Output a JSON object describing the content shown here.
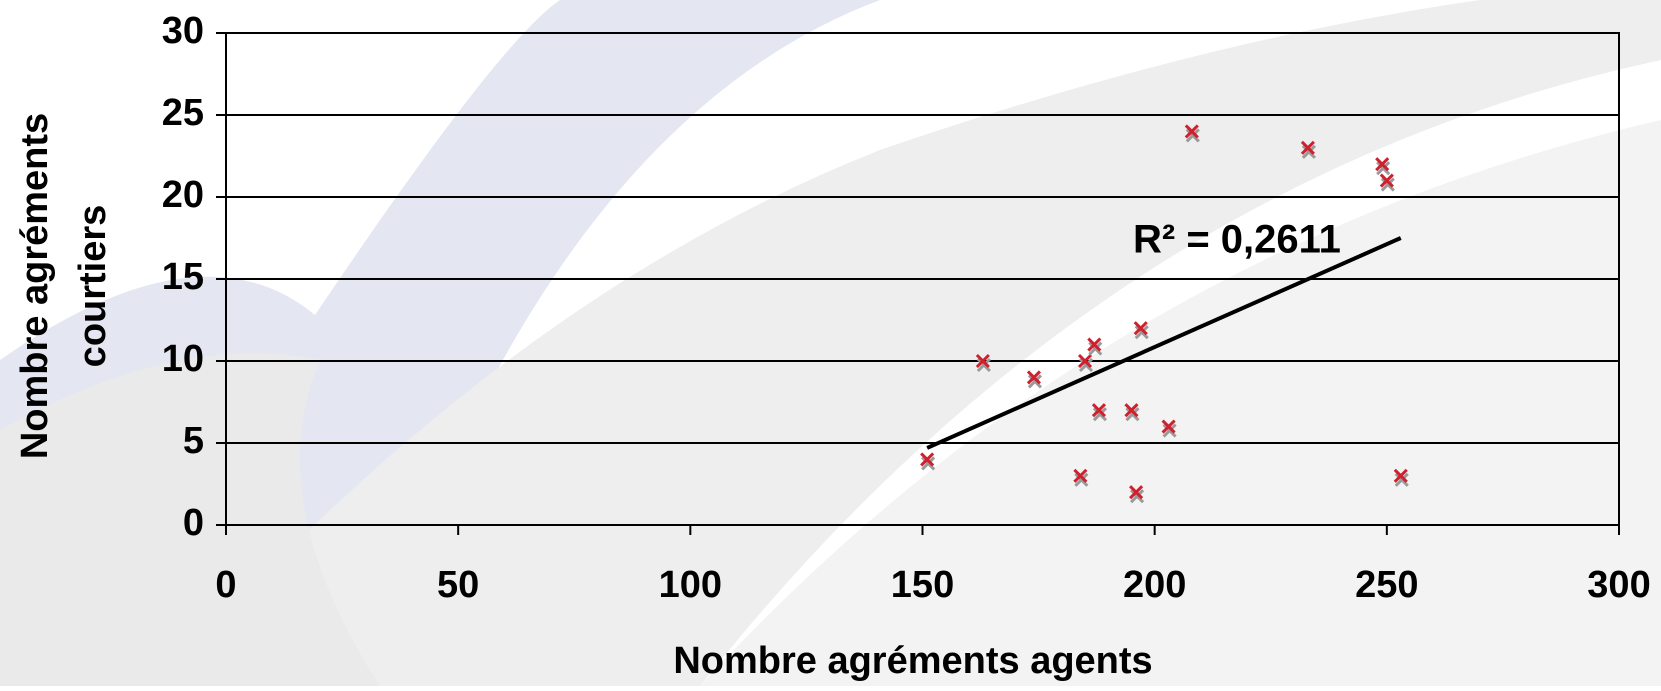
{
  "chart_data": {
    "type": "scatter",
    "xlabel": "Nombre agréments agents",
    "ylabel": [
      "Nombre agréments",
      "courtiers"
    ],
    "x": [
      151,
      163,
      174,
      184,
      185,
      187,
      188,
      197,
      195,
      196,
      203,
      208,
      233,
      249,
      250,
      253
    ],
    "values": [
      4,
      10,
      9,
      3,
      10,
      11,
      7,
      12,
      7,
      2,
      6,
      24,
      23,
      22,
      21,
      3
    ],
    "color": "#d0202e",
    "trendline": {
      "x": [
        151,
        253
      ],
      "values": [
        4.7,
        17.5
      ],
      "color": "#000000"
    },
    "annotation": "R² = 0,2611",
    "xlim": [
      0,
      300
    ],
    "xticks": [
      0,
      50,
      100,
      150,
      200,
      250,
      300
    ],
    "ylim": [
      0,
      30
    ],
    "yticks": [
      0,
      5,
      10,
      15,
      20,
      25,
      30
    ],
    "grid": true
  }
}
